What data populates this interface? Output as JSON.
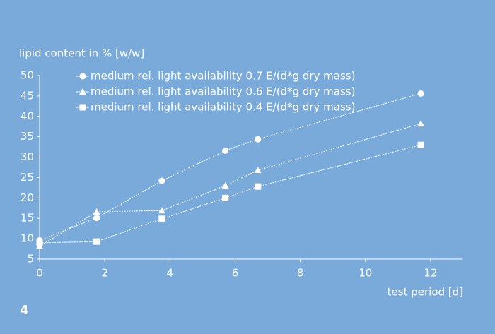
{
  "chart_data": {
    "type": "line",
    "y_label": "lipid content in % [w/w]",
    "x_label": "test period [d]",
    "figure_number": "4",
    "xlim": [
      0,
      13
    ],
    "xticks": [
      0,
      2,
      4,
      6,
      8,
      10,
      12
    ],
    "ylim": [
      5,
      50
    ],
    "yticks": [
      5,
      10,
      15,
      20,
      25,
      30,
      35,
      40,
      45,
      50
    ],
    "series": [
      {
        "name": "medium rel. light availability 0.7 E/(d*g dry mass)",
        "color": "#ffffff",
        "marker": "circle",
        "x": [
          0,
          1.75,
          3.75,
          5.7,
          6.7,
          11.7
        ],
        "values": [
          9.6,
          15.1,
          24.2,
          31.6,
          34.4,
          45.6
        ]
      },
      {
        "name": "medium rel. light availability 0.6 E/(d*g dry mass)",
        "color": "#ffffff",
        "marker": "triangle",
        "x": [
          0,
          1.75,
          3.75,
          5.7,
          6.7,
          11.7
        ],
        "values": [
          8.2,
          16.6,
          16.9,
          23.0,
          26.8,
          38.2
        ]
      },
      {
        "name": "medium rel. light availability 0.4 E/(d*g dry mass)",
        "color": "#ffffff",
        "marker": "square",
        "x": [
          0,
          1.75,
          3.75,
          5.7,
          6.7,
          11.7
        ],
        "values": [
          9.0,
          9.3,
          14.9,
          20.0,
          22.8,
          33.0
        ]
      }
    ]
  }
}
